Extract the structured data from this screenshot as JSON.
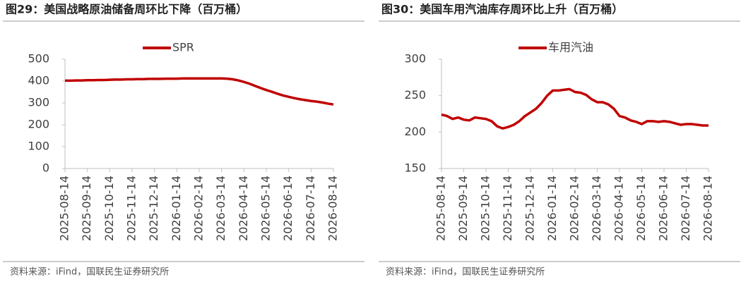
{
  "chart_data": [
    {
      "type": "line",
      "title": "图29：美国战略原油储备周环比下降（百万桶）",
      "categories": [
        "2025-08-14",
        null,
        null,
        null,
        "2025-09-14",
        null,
        null,
        null,
        "2025-10-14",
        null,
        null,
        null,
        "2025-11-14",
        null,
        null,
        null,
        "2025-12-14",
        null,
        null,
        null,
        "2026-01-14",
        null,
        null,
        null,
        "2026-02-14",
        null,
        null,
        null,
        "2026-03-14",
        null,
        null,
        null,
        "2026-04-14",
        null,
        null,
        null,
        "2026-05-14",
        null,
        null,
        null,
        "2026-06-14",
        null,
        null,
        null,
        "2026-07-14",
        null,
        null,
        null,
        "2026-08-14"
      ],
      "series": [
        {
          "name": "SPR",
          "color": "#c00000",
          "values": [
            402,
            402,
            403,
            403,
            404,
            404,
            405,
            405,
            406,
            407,
            407,
            408,
            408,
            409,
            409,
            410,
            410,
            410,
            411,
            411,
            411,
            412,
            412,
            412,
            412,
            412,
            412,
            412,
            412,
            411,
            408,
            403,
            396,
            388,
            378,
            368,
            359,
            351,
            342,
            334,
            328,
            322,
            317,
            313,
            309,
            306,
            302,
            297,
            293
          ]
        }
      ],
      "ylim": [
        0,
        500
      ],
      "yticks": [
        0,
        100,
        200,
        300,
        400,
        500
      ],
      "legend": "top",
      "source": "资料来源：iFind，国联民生证券研究所"
    },
    {
      "type": "line",
      "title": "图30：美国车用汽油库存周环比上升（百万桶）",
      "categories": [
        "2025-08-14",
        null,
        null,
        null,
        "2025-09-14",
        null,
        null,
        null,
        "2025-10-14",
        null,
        null,
        null,
        "2025-11-14",
        null,
        null,
        null,
        "2025-12-14",
        null,
        null,
        null,
        "2026-01-14",
        null,
        null,
        null,
        "2026-02-14",
        null,
        null,
        null,
        "2026-03-14",
        null,
        null,
        null,
        "2026-04-14",
        null,
        null,
        null,
        "2026-05-14",
        null,
        null,
        null,
        "2026-06-14",
        null,
        null,
        null,
        "2026-07-14",
        null,
        null,
        null,
        "2026-08-14"
      ],
      "series": [
        {
          "name": "车用汽油",
          "color": "#c00000",
          "values": [
            224,
            222,
            218,
            220,
            217,
            216,
            220,
            219,
            218,
            215,
            208,
            205,
            207,
            210,
            215,
            222,
            227,
            232,
            240,
            250,
            257,
            257,
            258,
            259,
            255,
            254,
            251,
            245,
            241,
            241,
            238,
            232,
            222,
            220,
            216,
            214,
            211,
            215,
            215,
            214,
            215,
            214,
            212,
            210,
            211,
            211,
            210,
            209,
            209
          ]
        }
      ],
      "ylim": [
        150,
        300
      ],
      "yticks": [
        150,
        200,
        250,
        300
      ],
      "legend": "top",
      "source": "资料来源：iFind，国联民生证券研究所"
    }
  ]
}
